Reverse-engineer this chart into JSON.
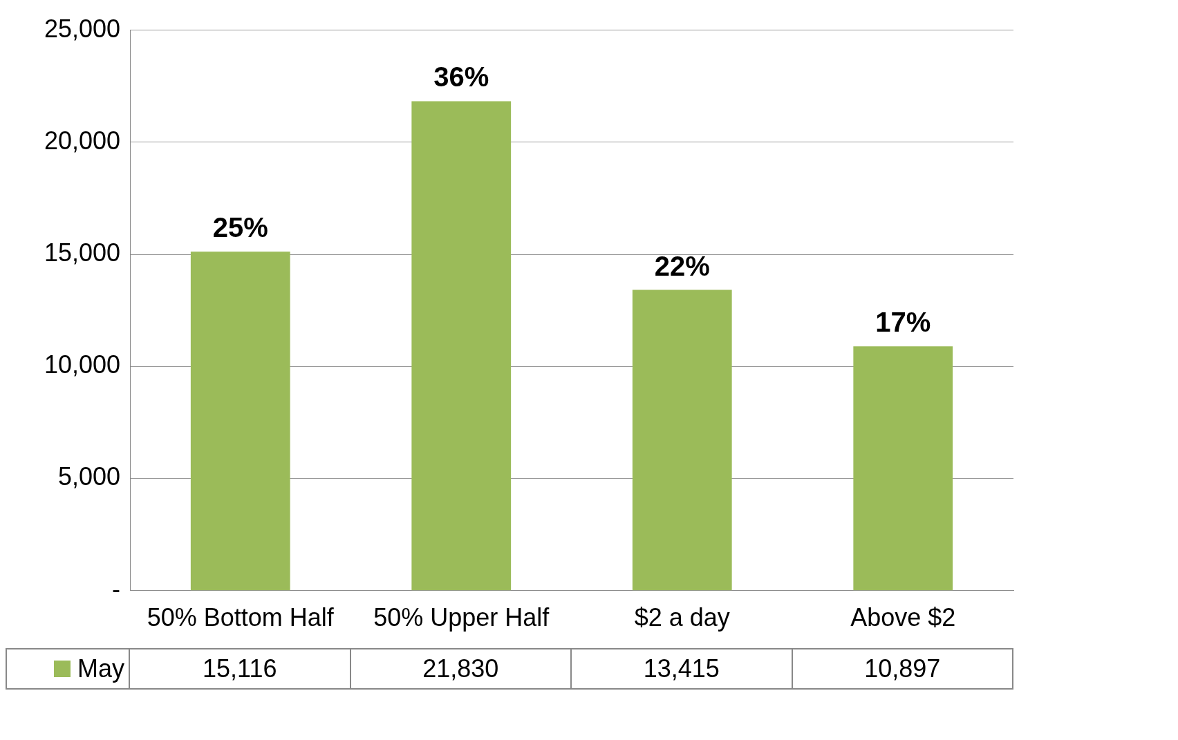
{
  "chart_data": {
    "type": "bar",
    "categories": [
      "50% Bottom Half",
      "50% Upper Half",
      "$2 a day",
      "Above $2"
    ],
    "series": [
      {
        "name": "May",
        "color": "#9bbb59",
        "values": [
          15116,
          21830,
          13415,
          10897
        ],
        "value_labels": [
          "15,116",
          "21,830",
          "13,415",
          "10,897"
        ]
      }
    ],
    "ylim": [
      0,
      25000
    ],
    "yticks": [
      {
        "value": 0,
        "label": "-"
      },
      {
        "value": 5000,
        "label": "5,000"
      },
      {
        "value": 10000,
        "label": "10,000"
      },
      {
        "value": 15000,
        "label": "15,000"
      },
      {
        "value": 20000,
        "label": "20,000"
      },
      {
        "value": 25000,
        "label": "25,000"
      }
    ],
    "grid": "y",
    "data_labels": true,
    "annotations": [
      {
        "text": "25%",
        "x": "50% Bottom Half",
        "y": 15116
      },
      {
        "text": "36%",
        "x": "50% Upper Half",
        "y": 21830
      },
      {
        "text": "22%",
        "x": "$2 a day",
        "y": 13415
      },
      {
        "text": "17%",
        "x": "Above $2",
        "y": 10897
      }
    ]
  }
}
